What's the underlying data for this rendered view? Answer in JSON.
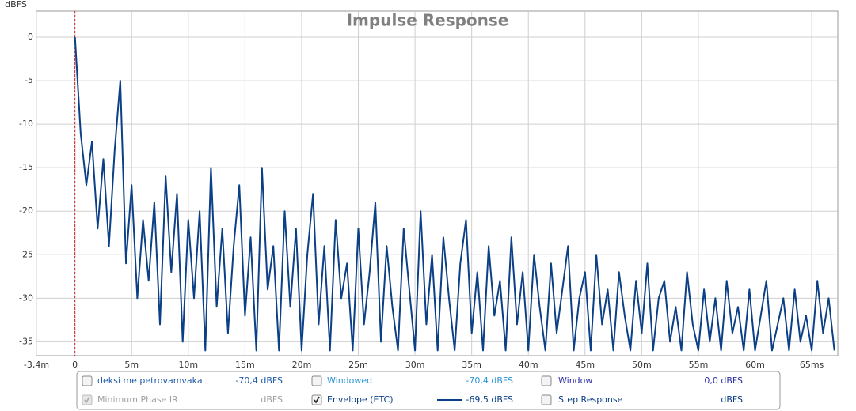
{
  "chart_data": {
    "type": "line",
    "title": "Impulse Response",
    "y_label": "dBFS",
    "x": [
      0,
      0.5,
      1,
      1.5,
      2,
      2.5,
      3,
      3.5,
      4,
      4.5,
      5,
      5.5,
      6,
      6.5,
      7,
      7.5,
      8,
      8.5,
      9,
      9.5,
      10,
      10.5,
      11,
      11.5,
      12,
      12.5,
      13,
      13.5,
      14,
      14.5,
      15,
      15.5,
      16,
      16.5,
      17,
      17.5,
      18,
      18.5,
      19,
      19.5,
      20,
      20.5,
      21,
      21.5,
      22,
      22.5,
      23,
      23.5,
      24,
      24.5,
      25,
      25.5,
      26,
      26.5,
      27,
      27.5,
      28,
      28.5,
      29,
      29.5,
      30,
      30.5,
      31,
      31.5,
      32,
      32.5,
      33,
      33.5,
      34,
      34.5,
      35,
      35.5,
      36,
      36.5,
      37,
      37.5,
      38,
      38.5,
      39,
      39.5,
      40,
      40.5,
      41,
      41.5,
      42,
      42.5,
      43,
      43.5,
      44,
      44.5,
      45,
      45.5,
      46,
      46.5,
      47,
      47.5,
      48,
      48.5,
      49,
      49.5,
      50,
      50.5,
      51,
      51.5,
      52,
      52.5,
      53,
      53.5,
      54,
      54.5,
      55,
      55.5,
      56,
      56.5,
      57,
      57.5,
      58,
      58.5,
      59,
      59.5,
      60,
      60.5,
      61,
      61.5,
      62,
      62.5,
      63,
      63.5,
      64,
      64.5,
      65,
      65.5,
      66,
      66.5,
      67
    ],
    "series": [
      {
        "color": "#0b3f86",
        "values": [
          0,
          -11,
          -17,
          -12,
          -22,
          -14,
          -24,
          -13,
          -5,
          -26,
          -17,
          -30,
          -21,
          -28,
          -19,
          -33,
          -16,
          -27,
          -18,
          -35,
          -21,
          -30,
          -20,
          -36,
          -15,
          -31,
          -22,
          -34,
          -24,
          -17,
          -32,
          -23,
          -36,
          -15,
          -29,
          -24,
          -36,
          -20,
          -31,
          -22,
          -36,
          -25,
          -18,
          -33,
          -24,
          -36,
          -21,
          -30,
          -26,
          -36,
          -22,
          -33,
          -27,
          -19,
          -35,
          -24,
          -31,
          -36,
          -22,
          -29,
          -36,
          -20,
          -33,
          -25,
          -36,
          -23,
          -30,
          -36,
          -26,
          -21,
          -34,
          -27,
          -36,
          -24,
          -32,
          -28,
          -36,
          -23,
          -33,
          -27,
          -36,
          -25,
          -31,
          -36,
          -26,
          -34,
          -29,
          -24,
          -36,
          -30,
          -27,
          -36,
          -25,
          -33,
          -29,
          -36,
          -27,
          -32,
          -36,
          -28,
          -34,
          -26,
          -36,
          -30,
          -28,
          -35,
          -31,
          -36,
          -27,
          -33,
          -36,
          -29,
          -35,
          -30,
          -36,
          -28,
          -34,
          -31,
          -36,
          -29,
          -36,
          -32,
          -28,
          -36,
          -33,
          -30,
          -36,
          -29,
          -35,
          -32,
          -36,
          -28,
          -34,
          -30,
          -36
        ]
      }
    ],
    "cursor_x": 0,
    "cursor_color": "#cc2222",
    "xlim": [
      -3.4,
      67.3
    ],
    "ylim": [
      -36.6,
      3
    ],
    "xticks": [
      {
        "value": -3.4,
        "label": "-3,4m"
      },
      0,
      {
        "value": 5,
        "label": "5m"
      },
      {
        "value": 10,
        "label": "10m"
      },
      {
        "value": 15,
        "label": "15m"
      },
      {
        "value": 20,
        "label": "20m"
      },
      {
        "value": 25,
        "label": "25m"
      },
      {
        "value": 30,
        "label": "30m"
      },
      {
        "value": 35,
        "label": "35m"
      },
      {
        "value": 40,
        "label": "40m"
      },
      {
        "value": 45,
        "label": "45m"
      },
      {
        "value": 50,
        "label": "50m"
      },
      {
        "value": 55,
        "label": "55m"
      },
      {
        "value": 60,
        "label": "60m"
      },
      {
        "value": 65,
        "label": "65ms"
      }
    ],
    "yticks": [
      0,
      -5,
      -10,
      -15,
      -20,
      -25,
      -30,
      -35
    ],
    "grid": true
  },
  "legend_panel": {
    "rows": [
      [
        {
          "label": "deksi me petrovamvaka",
          "value": "-70,4 dBFS",
          "checked": false,
          "enabled": true,
          "color": "#1f5aa8"
        },
        {
          "label": "Windowed",
          "value": "-70,4 dBFS",
          "checked": false,
          "enabled": true,
          "color": "#2b95d6"
        },
        {
          "label": "Window",
          "value": "0,0 dBFS",
          "checked": false,
          "enabled": true,
          "color": "#3030a8"
        }
      ],
      [
        {
          "label": "Minimum Phase IR",
          "value": "dBFS",
          "checked": true,
          "enabled": false,
          "color": "#a0a0a0"
        },
        {
          "label": "Envelope (ETC)",
          "value": "-69,5 dBFS",
          "checked": true,
          "enabled": true,
          "color": "#0b3f86"
        },
        {
          "label": "Step Response",
          "value": "dBFS",
          "checked": false,
          "enabled": true,
          "color": "#0b3f86"
        }
      ]
    ]
  }
}
